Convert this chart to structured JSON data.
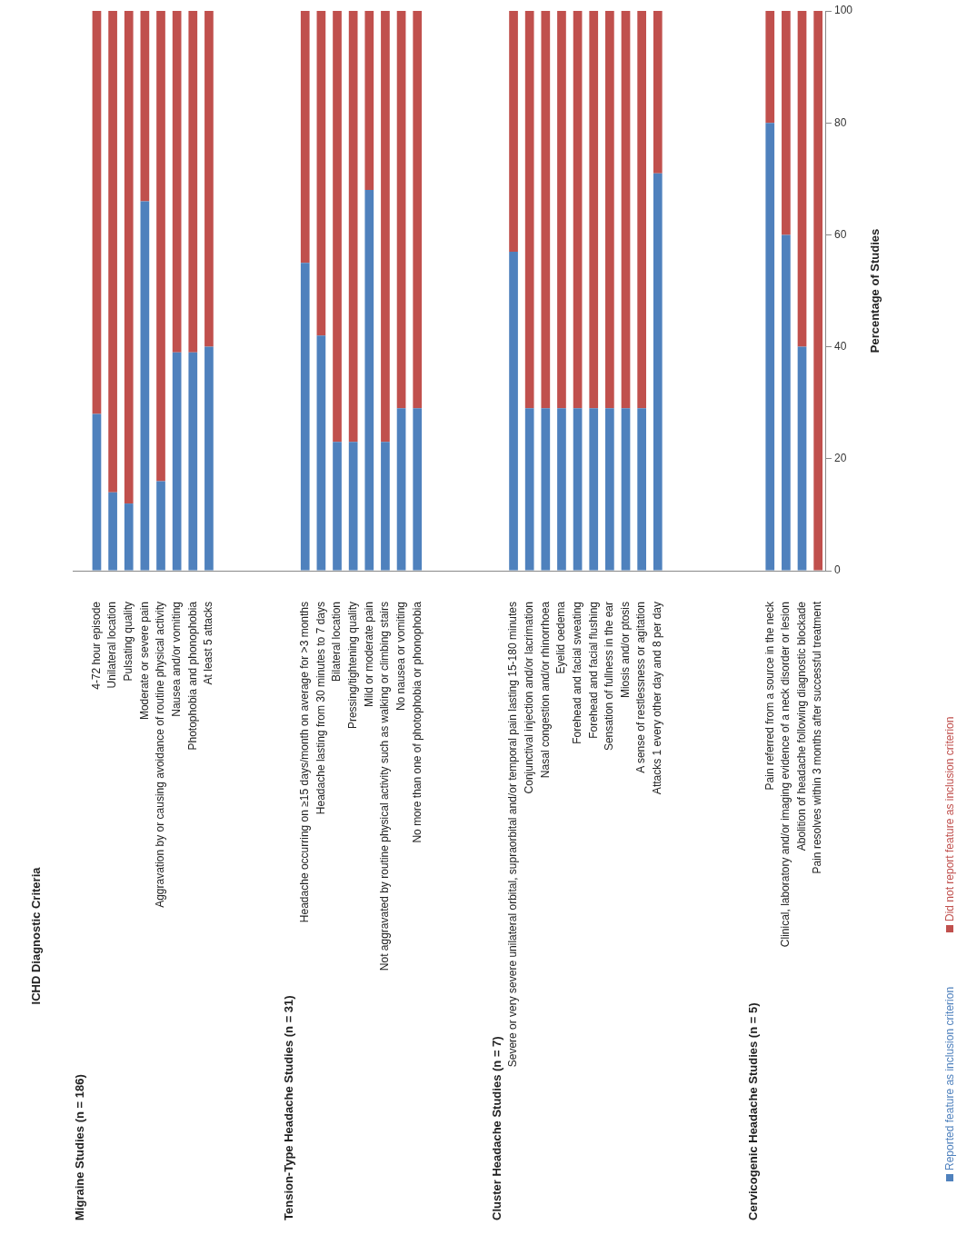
{
  "chart_data": {
    "type": "bar",
    "stacked": true,
    "title": "ICHD Diagnostic Criteria",
    "ylabel": "Percentage of Studies",
    "annotations": [
      "Migraine Studies (n = 186)",
      "Tension-Type Headache Studies (n = 31)",
      "Cluster Headache Studies (n = 7)",
      "Cervicogenic Headache Studies (n = 5)"
    ],
    "categories": [
      null,
      "4-72 hour episode",
      "Unilateral location",
      "Pulsating quality",
      "Moderate or severe pain",
      "Aggravation by or causing avoidance of routine physical activity",
      "Nausea and/or vomiting",
      "Photophobia and phonophobia",
      "At least 5 attacks",
      null,
      null,
      null,
      null,
      null,
      "Headache occurring on ≥15 days/month on average for >3 months",
      "Headache lasting from 30 minutes to 7 days",
      "Bilateral location",
      "Pressing/tightening quality",
      "Mild or moderate pain",
      "Not aggravated by routine physical activity such as walking or climbing stairs",
      "No nausea or vomiting",
      "No more than one of photophobia or phonophobia",
      null,
      null,
      null,
      null,
      null,
      "Severe or very severe unilateral orbital, supraorbital and/or temporal pain lasting 15-180 minutes",
      "Conjunctival injection and/or lacrimation",
      "Nasal congestion and/or rhinorrhoea",
      "Eyelid oedema",
      "Forehead and facial sweating",
      "Forehead and facial flushing",
      "Sensation of fullness in the ear",
      "Miosis and/or ptosis",
      "A sense of restlessness or agitation",
      "Attacks 1 every other day and 8 per day",
      null,
      null,
      null,
      null,
      null,
      null,
      "Pain referred from a source in the neck",
      "Clinical, laboratory and/or imaging evidence of a neck disorder or lesion",
      "Abolition of headache following diagnostic blockade",
      "Pain resolves within 3 months after successful treatment"
    ],
    "series": [
      {
        "name": "Reported feature as inclusion criterion",
        "color": "#4f81bd",
        "values": [
          null,
          28,
          14,
          12,
          66,
          16,
          39,
          39,
          40,
          null,
          null,
          null,
          null,
          null,
          55,
          42,
          23,
          23,
          68,
          23,
          29,
          29,
          null,
          null,
          null,
          null,
          null,
          57,
          29,
          29,
          29,
          29,
          29,
          29,
          29,
          29,
          71,
          null,
          null,
          null,
          null,
          null,
          null,
          80,
          60,
          40,
          0
        ]
      },
      {
        "name": "Did not report feature as inclusion criterion",
        "color": "#c0504d",
        "values": [
          null,
          72,
          86,
          88,
          34,
          84,
          61,
          61,
          60,
          null,
          null,
          null,
          null,
          null,
          45,
          58,
          77,
          77,
          32,
          77,
          71,
          71,
          null,
          null,
          null,
          null,
          null,
          43,
          71,
          71,
          71,
          71,
          71,
          71,
          71,
          71,
          29,
          null,
          null,
          null,
          null,
          null,
          null,
          20,
          40,
          60,
          100
        ]
      }
    ],
    "ylim": [
      0,
      100
    ],
    "yticks": [
      0,
      20,
      40,
      60,
      80,
      100
    ],
    "legend": "right"
  }
}
